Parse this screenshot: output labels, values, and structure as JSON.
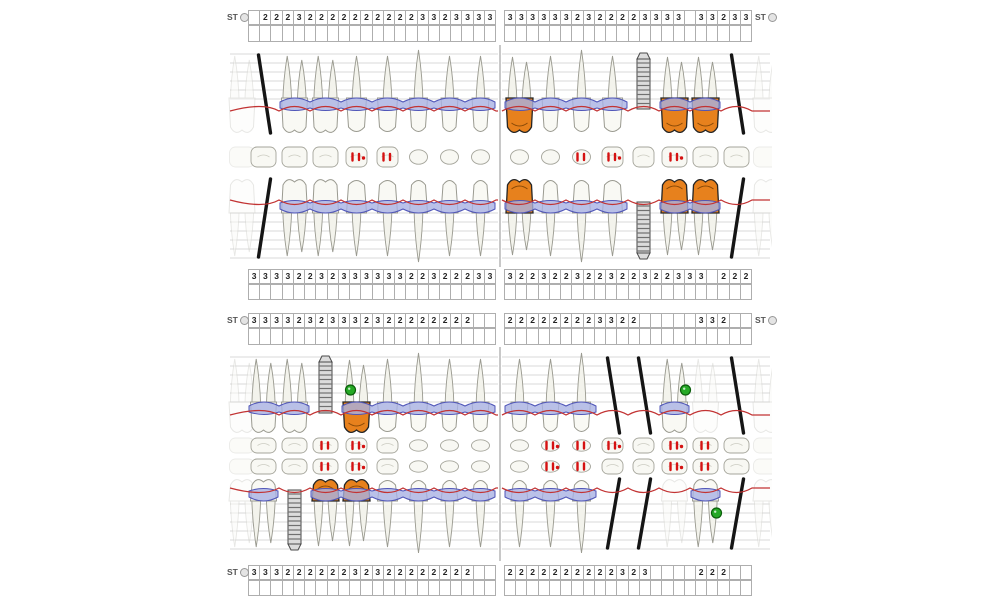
{
  "labels": {
    "st": "ST"
  },
  "colors": {
    "crown_restoration": "#e7811d",
    "gum_band": "#a9b1e4",
    "gum_band_outline": "#5056b8",
    "gingiva_line": "#c23333",
    "finding_green": "#26a926",
    "missing_mark": "#151515"
  },
  "charts": {
    "top": {
      "st_top": {
        "left": [
          "",
          "2",
          "2",
          "2",
          "3",
          "2",
          "2",
          "2",
          "2",
          "2",
          "2",
          "2",
          "2",
          "2",
          "2",
          "3",
          "3",
          "2",
          "3",
          "3",
          "3",
          "3"
        ],
        "right": [
          "3",
          "3",
          "3",
          "3",
          "3",
          "3",
          "2",
          "3",
          "2",
          "2",
          "2",
          "2",
          "3",
          "3",
          "3",
          "3",
          "",
          "3",
          "3",
          "2",
          "3",
          "3"
        ]
      },
      "st_bottom": {
        "left": [
          "3",
          "3",
          "3",
          "3",
          "2",
          "2",
          "3",
          "2",
          "3",
          "3",
          "3",
          "3",
          "3",
          "3",
          "2",
          "2",
          "3",
          "2",
          "2",
          "2",
          "3",
          "3"
        ],
        "right": [
          "3",
          "2",
          "2",
          "3",
          "2",
          "2",
          "3",
          "2",
          "2",
          "3",
          "2",
          "2",
          "3",
          "2",
          "2",
          "3",
          "3",
          "3",
          "",
          "2",
          "2",
          "2"
        ]
      },
      "teeth": {
        "upper": {
          "left": [
            "missing",
            "normal",
            "normal",
            "normal",
            "normal",
            "normal",
            "normal",
            "normal"
          ],
          "right": [
            "crown",
            "normal",
            "normal",
            "normal",
            "implant",
            "crown",
            "crown",
            "missing"
          ]
        },
        "lower": {
          "left": [
            "missing",
            "normal",
            "normal",
            "normal",
            "normal",
            "normal",
            "normal",
            "normal"
          ],
          "right": [
            "crown",
            "normal",
            "normal",
            "normal",
            "implant",
            "crown",
            "crown",
            "missing"
          ]
        }
      },
      "occlusal_rows": [
        {
          "left_marks": [
            3,
            4
          ],
          "right_marks": [
            2,
            3,
            5
          ]
        }
      ]
    },
    "bottom": {
      "st_top": {
        "left": [
          "3",
          "3",
          "3",
          "3",
          "2",
          "3",
          "2",
          "3",
          "3",
          "3",
          "2",
          "3",
          "2",
          "2",
          "2",
          "2",
          "2",
          "2",
          "2",
          "2",
          "",
          ""
        ],
        "right": [
          "2",
          "2",
          "2",
          "2",
          "2",
          "2",
          "2",
          "2",
          "3",
          "3",
          "2",
          "2",
          "",
          "",
          "",
          "",
          "",
          "3",
          "3",
          "2",
          "",
          ""
        ]
      },
      "st_bottom": {
        "left": [
          "3",
          "3",
          "3",
          "2",
          "2",
          "2",
          "2",
          "2",
          "2",
          "3",
          "2",
          "3",
          "2",
          "2",
          "2",
          "2",
          "2",
          "2",
          "2",
          "2",
          "",
          ""
        ],
        "right": [
          "2",
          "2",
          "2",
          "2",
          "2",
          "2",
          "2",
          "2",
          "2",
          "2",
          "3",
          "2",
          "3",
          "",
          "",
          "",
          "",
          "2",
          "2",
          "2",
          "",
          ""
        ]
      },
      "teeth": {
        "upper": {
          "left": [
            "normal",
            "normal",
            "implant",
            "crown_green",
            "normal",
            "normal",
            "normal",
            "normal"
          ],
          "right": [
            "normal",
            "normal",
            "normal",
            "missing",
            "missing",
            "normal_green",
            "ghost",
            "missing"
          ]
        },
        "lower": {
          "left": [
            "normal",
            "implant",
            "crown",
            "crown",
            "normal",
            "normal",
            "normal",
            "normal"
          ],
          "right": [
            "normal",
            "normal",
            "normal",
            "missing",
            "missing",
            "ghost",
            "normal_green",
            "missing"
          ]
        }
      },
      "occlusal_rows": [
        {
          "left_marks": [
            2,
            3
          ],
          "right_marks": [
            1,
            2,
            3,
            5,
            6
          ]
        },
        {
          "left_marks": [
            2,
            3
          ],
          "right_marks": [
            1,
            2,
            5,
            6
          ]
        }
      ]
    }
  }
}
